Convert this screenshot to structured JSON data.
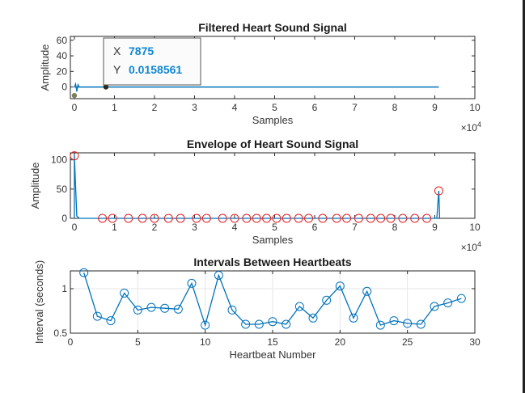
{
  "chart_data": [
    {
      "type": "line",
      "title": "Filtered Heart Sound Signal",
      "xlabel": "Samples",
      "ylabel": "Amplitude",
      "xlim": [
        -1000,
        100000
      ],
      "ylim": [
        -15,
        65
      ],
      "x_ticks": [
        0,
        1,
        2,
        3,
        4,
        5,
        6,
        7,
        8,
        9,
        10
      ],
      "x_tick_labels": [
        "0",
        "1",
        "2",
        "3",
        "4",
        "5",
        "6",
        "7",
        "8",
        "9",
        "10"
      ],
      "x_exponent": "×10",
      "x_exponent_power": "4",
      "y_ticks": [
        0,
        20,
        40,
        60
      ],
      "y_tick_labels": [
        "0",
        "20",
        "40",
        "60"
      ],
      "series_color": "#0072bd",
      "signal_end": 91000,
      "spike": {
        "x": [
          0,
          300,
          600,
          900,
          1200
        ],
        "y": [
          0,
          4,
          -6,
          3,
          0
        ]
      },
      "markers": [
        {
          "x": 0,
          "y": -11,
          "color": "#7d7d5a"
        },
        {
          "x": 7875,
          "y": 0.0158561,
          "color": "#2a2a1a"
        }
      ],
      "datatip": {
        "x_key": "X",
        "x_value": "7875",
        "y_key": "Y",
        "y_value": "0.0158561"
      }
    },
    {
      "type": "line",
      "title": "Envelope of Heart Sound Signal",
      "xlabel": "Samples",
      "ylabel": "Amplitude",
      "xlim": [
        -1000,
        100000
      ],
      "ylim": [
        0,
        112
      ],
      "x_ticks": [
        0,
        1,
        2,
        3,
        4,
        5,
        6,
        7,
        8,
        9,
        10
      ],
      "x_tick_labels": [
        "0",
        "1",
        "2",
        "3",
        "4",
        "5",
        "6",
        "7",
        "8",
        "9",
        "10"
      ],
      "x_exponent": "×10",
      "x_exponent_power": "4",
      "y_ticks": [
        0,
        50,
        100
      ],
      "y_tick_labels": [
        "0",
        "50",
        "100"
      ],
      "series_color": "#0072bd",
      "peak_marker_color": "#e02020",
      "peaks_x": [
        0,
        7000,
        9500,
        13500,
        17000,
        20000,
        23500,
        26500,
        30500,
        33000,
        37000,
        40000,
        43000,
        45500,
        48000,
        50500,
        53000,
        56000,
        58500,
        62000,
        65500,
        68000,
        71000,
        74000,
        76500,
        79000,
        82000,
        85000,
        88000,
        91000
      ],
      "peaks_y": [
        107,
        0,
        0,
        0,
        0,
        0,
        0,
        0,
        0,
        0,
        0,
        0,
        0,
        0,
        0,
        0,
        0,
        0,
        0,
        0,
        0,
        0,
        0,
        0,
        0,
        0,
        0,
        0,
        0,
        47
      ]
    },
    {
      "type": "line",
      "title": "Intervals Between Heartbeats",
      "xlabel": "Heartbeat Number",
      "ylabel": "Interval (seconds)",
      "xlim": [
        0,
        30
      ],
      "ylim": [
        0.5,
        1.2
      ],
      "x_ticks": [
        0,
        5,
        10,
        15,
        20,
        25,
        30
      ],
      "x_tick_labels": [
        "0",
        "5",
        "10",
        "15",
        "20",
        "25",
        "30"
      ],
      "y_ticks": [
        0.5,
        1
      ],
      "y_tick_labels": [
        "0.5",
        "1"
      ],
      "grid": true,
      "series_color": "#0072bd",
      "x": [
        1,
        2,
        3,
        4,
        5,
        6,
        7,
        8,
        9,
        10,
        11,
        12,
        13,
        14,
        15,
        16,
        17,
        18,
        19,
        20,
        21,
        22,
        23,
        24,
        25,
        26,
        27,
        28,
        29
      ],
      "y": [
        1.18,
        0.69,
        0.64,
        0.95,
        0.76,
        0.79,
        0.78,
        0.77,
        1.06,
        0.59,
        1.15,
        0.76,
        0.6,
        0.6,
        0.63,
        0.6,
        0.8,
        0.67,
        0.87,
        1.03,
        0.67,
        0.97,
        0.59,
        0.64,
        0.61,
        0.6,
        0.8,
        0.84,
        0.89
      ]
    }
  ]
}
